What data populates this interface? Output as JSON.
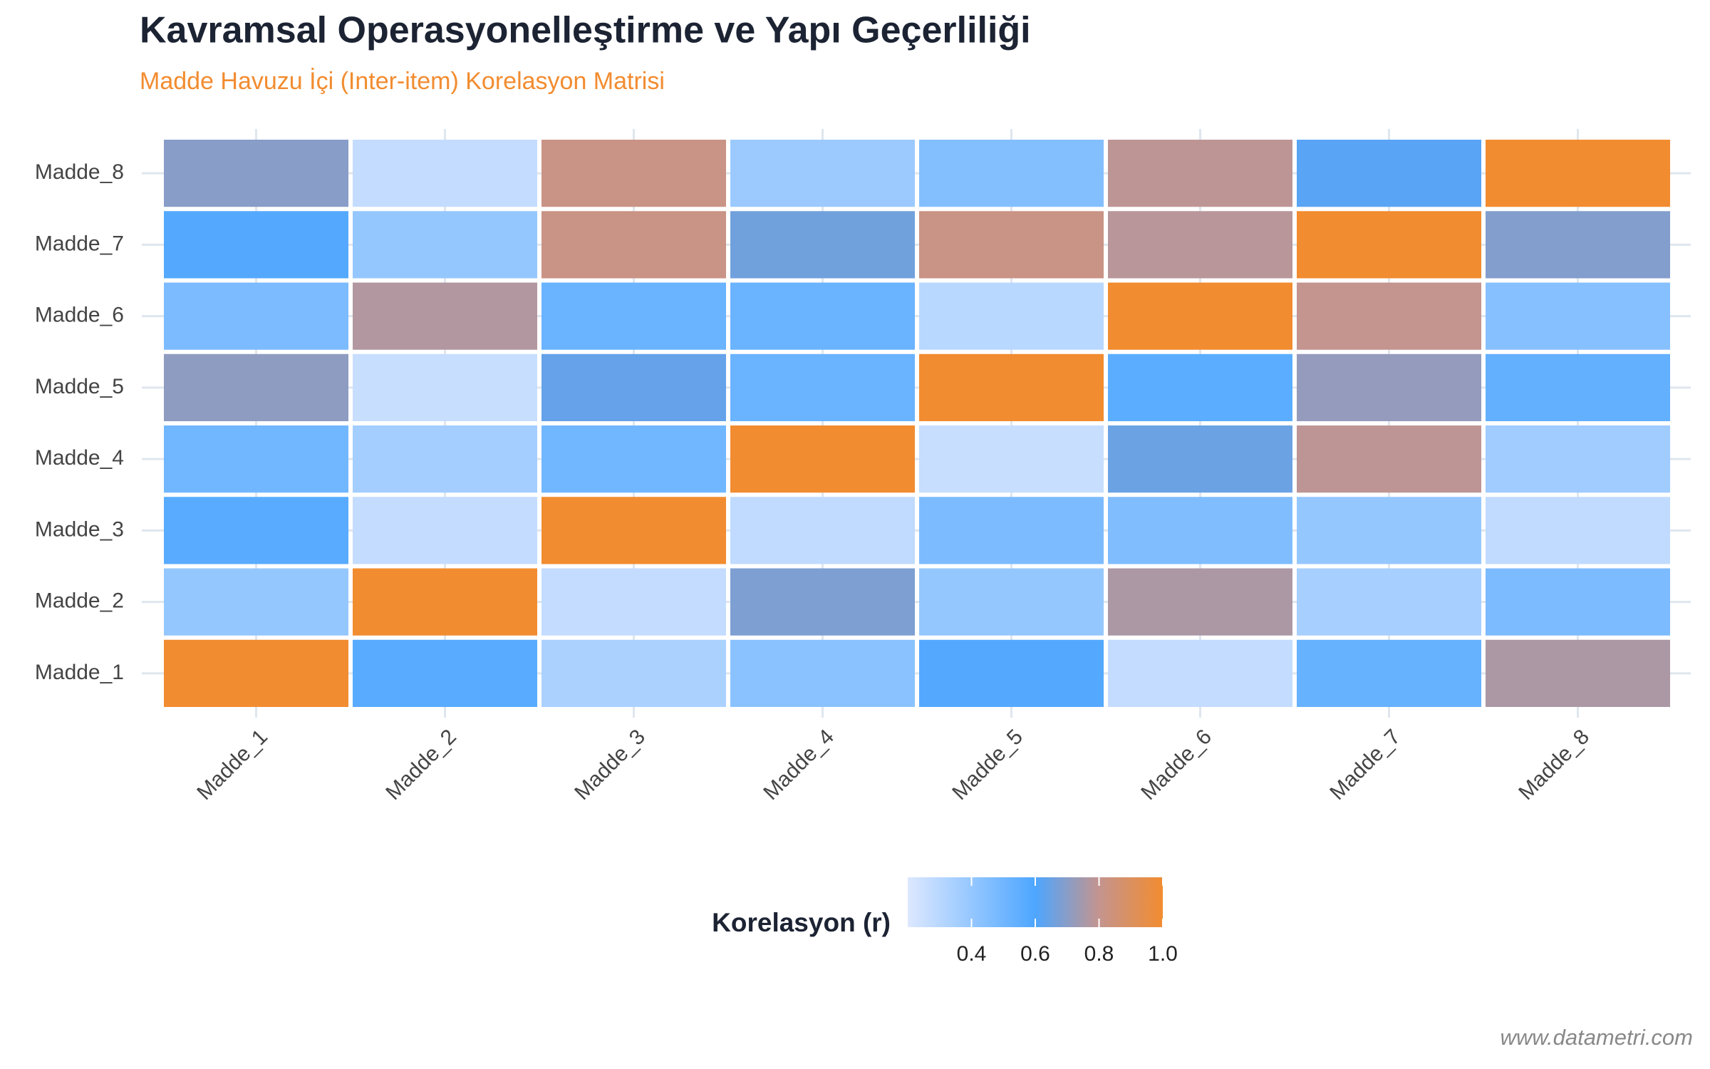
{
  "chart_data": {
    "type": "heatmap",
    "title": "Kavramsal Operasyonelleştirme ve Yapı Geçerliliği",
    "subtitle": "Madde Havuzu İçi (Inter-item) Korelasyon Matrisi",
    "x": [
      "Madde_1",
      "Madde_2",
      "Madde_3",
      "Madde_4",
      "Madde_5",
      "Madde_6",
      "Madde_7",
      "Madde_8"
    ],
    "y": [
      "Madde_1",
      "Madde_2",
      "Madde_3",
      "Madde_4",
      "Madde_5",
      "Madde_6",
      "Madde_7",
      "Madde_8"
    ],
    "values": [
      [
        1.0,
        0.57,
        0.34,
        0.43,
        0.58,
        0.27,
        0.53,
        0.76
      ],
      [
        0.4,
        1.0,
        0.27,
        0.68,
        0.4,
        0.76,
        0.35,
        0.47
      ],
      [
        0.57,
        0.27,
        1.0,
        0.28,
        0.47,
        0.46,
        0.4,
        0.28
      ],
      [
        0.5,
        0.36,
        0.5,
        1.0,
        0.26,
        0.65,
        0.79,
        0.37
      ],
      [
        0.71,
        0.26,
        0.64,
        0.52,
        1.0,
        0.56,
        0.72,
        0.54
      ],
      [
        0.47,
        0.77,
        0.52,
        0.52,
        0.3,
        1.0,
        0.8,
        0.44
      ],
      [
        0.58,
        0.4,
        0.82,
        0.66,
        0.82,
        0.78,
        1.0,
        0.69
      ],
      [
        0.7,
        0.27,
        0.82,
        0.38,
        0.45,
        0.79,
        0.62,
        1.0
      ]
    ],
    "colorscale": [
      [
        0.2,
        "#dde8ff"
      ],
      [
        0.6,
        "#4da6ff"
      ],
      [
        0.8,
        "#c4948f"
      ],
      [
        1.0,
        "#f28c30"
      ]
    ],
    "legend_title": "Korelasyon (r)",
    "clim": [
      0.2,
      1.0
    ],
    "cticks": [
      0.4,
      0.6,
      0.8,
      {
        "value": 1.0,
        "label": "1.0"
      }
    ],
    "grid": true,
    "source": "www.datametri.com"
  }
}
